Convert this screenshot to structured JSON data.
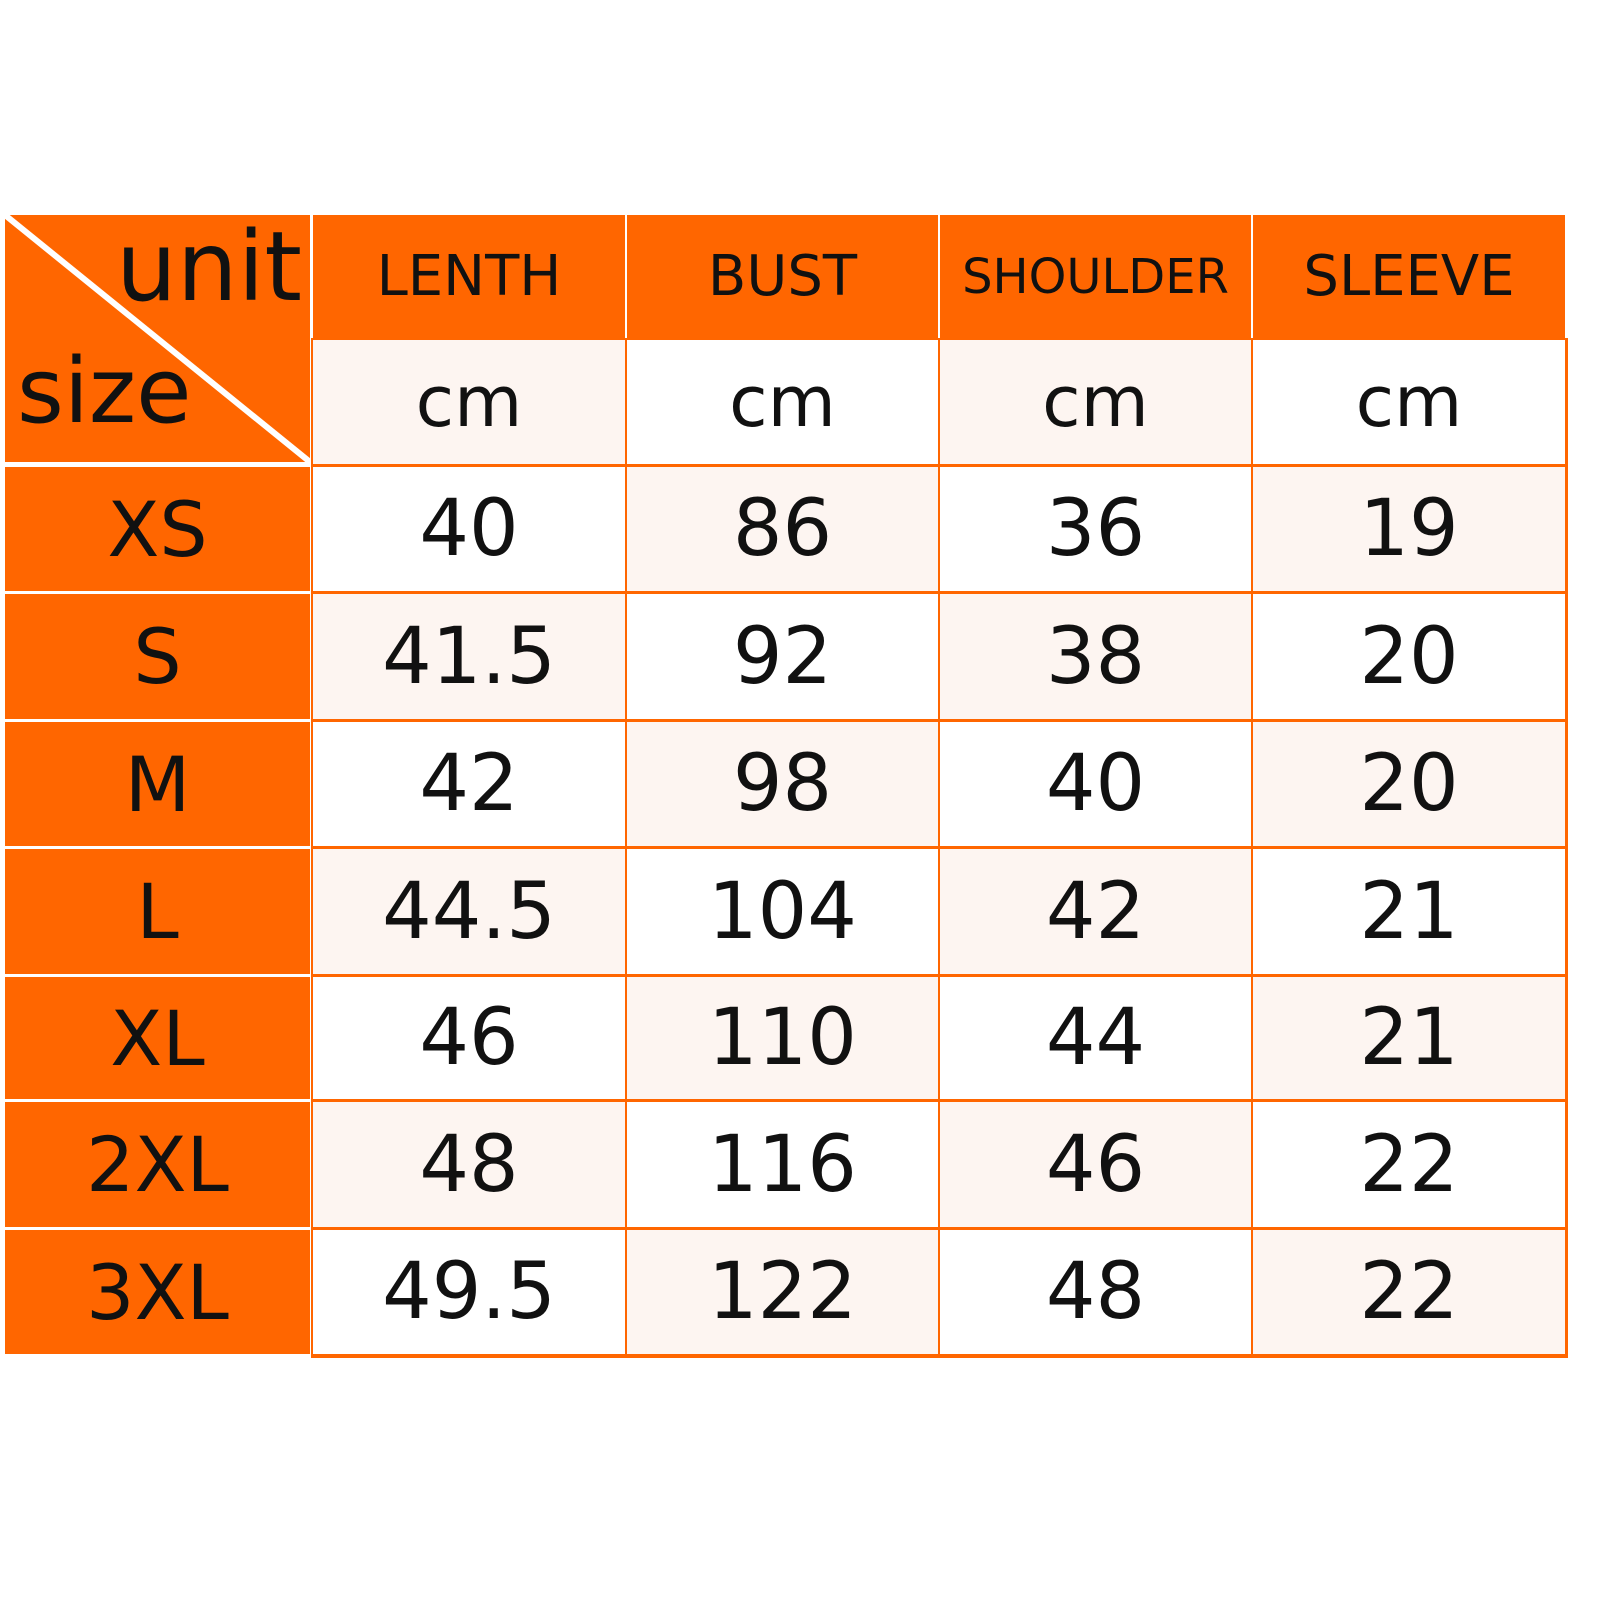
{
  "colors": {
    "accent": "#ff6600",
    "cell_tint": "#fdf5f1",
    "cell_plain": "#ffffff"
  },
  "corner": {
    "top_label": "unit",
    "bottom_label": "size"
  },
  "columns": [
    {
      "label": "LENTH",
      "unit": "cm"
    },
    {
      "label": "BUST",
      "unit": "cm"
    },
    {
      "label": "SHOULDER",
      "unit": "cm"
    },
    {
      "label": "SLEEVE",
      "unit": "cm"
    }
  ],
  "rows": [
    {
      "size": "XS",
      "values": [
        "40",
        "86",
        "36",
        "19"
      ]
    },
    {
      "size": "S",
      "values": [
        "41.5",
        "92",
        "38",
        "20"
      ]
    },
    {
      "size": "M",
      "values": [
        "42",
        "98",
        "40",
        "20"
      ]
    },
    {
      "size": "L",
      "values": [
        "44.5",
        "104",
        "42",
        "21"
      ]
    },
    {
      "size": "XL",
      "values": [
        "46",
        "110",
        "44",
        "21"
      ]
    },
    {
      "size": "2XL",
      "values": [
        "48",
        "116",
        "46",
        "22"
      ]
    },
    {
      "size": "3XL",
      "values": [
        "49.5",
        "122",
        "48",
        "22"
      ]
    }
  ]
}
